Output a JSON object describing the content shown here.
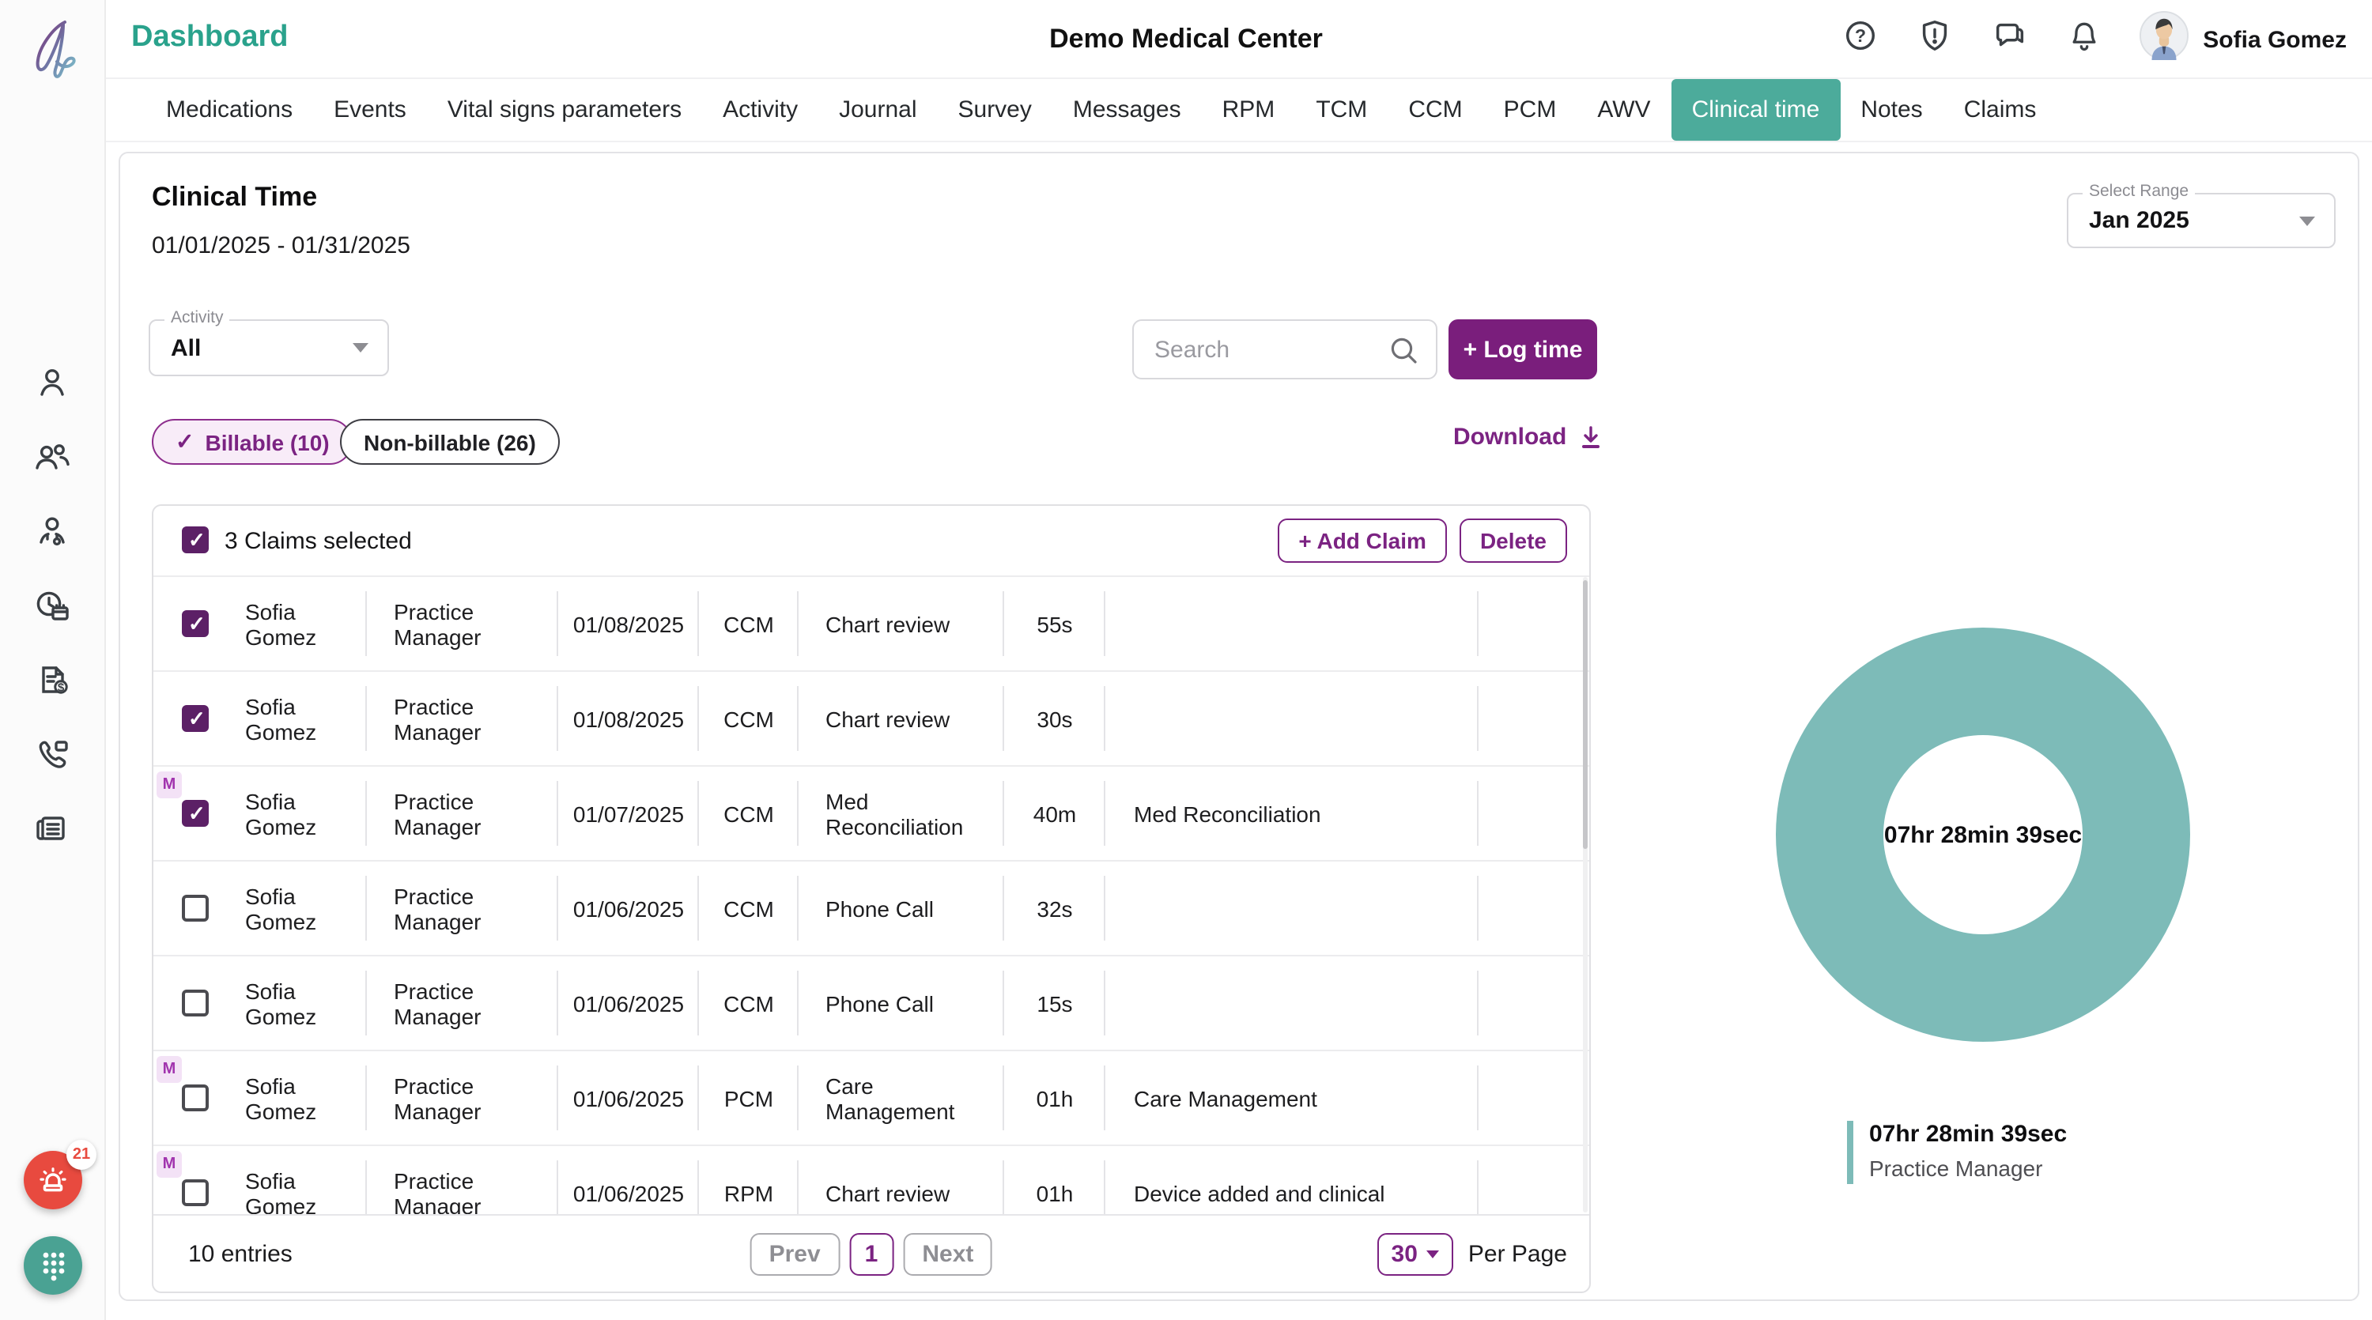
{
  "header": {
    "app_section": "Dashboard",
    "title": "Demo Medical Center",
    "user_name": "Sofia Gomez",
    "icons": [
      "help-icon",
      "alert-shield-icon",
      "messages-icon",
      "notifications-icon"
    ]
  },
  "sidebar": {
    "icons": [
      "patient-icon",
      "patients-group-icon",
      "doctor-icon",
      "time-schedule-icon",
      "billing-document-icon",
      "phone-chat-icon",
      "news-report-icon"
    ],
    "alarm_badge": "21",
    "fab_icons": [
      "alarm-siren-icon",
      "dialpad-icon"
    ]
  },
  "tabs": [
    "Medications",
    "Events",
    "Vital signs parameters",
    "Activity",
    "Journal",
    "Survey",
    "Messages",
    "RPM",
    "TCM",
    "CCM",
    "PCM",
    "AWV",
    "Clinical time",
    "Notes",
    "Claims"
  ],
  "active_tab": "Clinical time",
  "page": {
    "title": "Clinical Time",
    "date_range": "01/01/2025 - 01/31/2025",
    "select_range": {
      "label": "Select Range",
      "value": "Jan 2025"
    },
    "activity_filter": {
      "label": "Activity",
      "value": "All"
    },
    "search_placeholder": "Search",
    "log_time_label": "+ Log time",
    "billable_chip": "Billable (10)",
    "non_billable_chip": "Non-billable (26)",
    "download_label": "Download"
  },
  "table": {
    "selected_summary": "3 Claims selected",
    "add_claim_label": "+ Add Claim",
    "delete_label": "Delete",
    "m_badge_label": "M",
    "rows": [
      {
        "checked": true,
        "monitoring": false,
        "name": "Sofia Gomez",
        "role": "Practice Manager",
        "date": "01/08/2025",
        "program": "CCM",
        "activity": "Chart review",
        "duration": "55s",
        "note": ""
      },
      {
        "checked": true,
        "monitoring": false,
        "name": "Sofia Gomez",
        "role": "Practice Manager",
        "date": "01/08/2025",
        "program": "CCM",
        "activity": "Chart review",
        "duration": "30s",
        "note": ""
      },
      {
        "checked": true,
        "monitoring": true,
        "name": "Sofia Gomez",
        "role": "Practice Manager",
        "date": "01/07/2025",
        "program": "CCM",
        "activity": "Med Reconciliation",
        "duration": "40m",
        "note": "Med Reconciliation"
      },
      {
        "checked": false,
        "monitoring": false,
        "name": "Sofia Gomez",
        "role": "Practice Manager",
        "date": "01/06/2025",
        "program": "CCM",
        "activity": "Phone Call",
        "duration": "32s",
        "note": ""
      },
      {
        "checked": false,
        "monitoring": false,
        "name": "Sofia Gomez",
        "role": "Practice Manager",
        "date": "01/06/2025",
        "program": "CCM",
        "activity": "Phone Call",
        "duration": "15s",
        "note": ""
      },
      {
        "checked": false,
        "monitoring": true,
        "name": "Sofia Gomez",
        "role": "Practice Manager",
        "date": "01/06/2025",
        "program": "PCM",
        "activity": "Care Management",
        "duration": "01h",
        "note": "Care Management"
      },
      {
        "checked": false,
        "monitoring": true,
        "name": "Sofia Gomez",
        "role": "Practice Manager",
        "date": "01/06/2025",
        "program": "RPM",
        "activity": "Chart review",
        "duration": "01h",
        "note": "Device added and clinical"
      }
    ]
  },
  "pagination": {
    "entries": "10 entries",
    "prev": "Prev",
    "page": "1",
    "next": "Next",
    "per_page_value": "30",
    "per_page_label": "Per Page"
  },
  "chart_data": {
    "type": "pie",
    "title": "",
    "center_label": "07hr 28min 39sec",
    "series": [
      {
        "name": "Practice Manager",
        "value_label": "07hr 28min 39sec",
        "percent": 100
      }
    ],
    "legend_position": "bottom-left",
    "color": "#7dbbb8"
  },
  "colors": {
    "accent_teal": "#4cab9b",
    "brand_teal": "#2aa28c",
    "accent_purple": "#7a1e7c",
    "checkbox_purple": "#5c2066",
    "donut_teal": "#7dbbb8",
    "alarm_red": "#e84a3f"
  }
}
